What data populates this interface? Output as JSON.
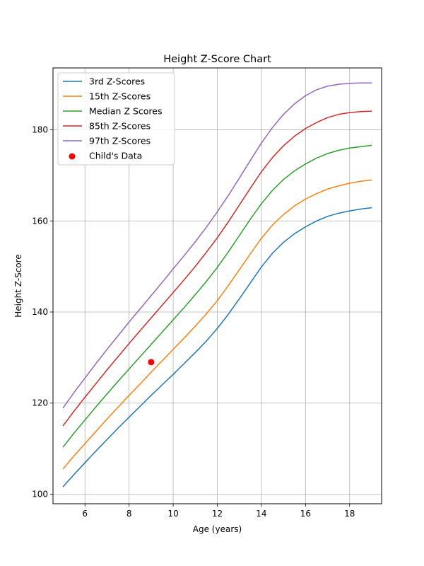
{
  "chart_data": {
    "type": "line",
    "title": "Height Z-Score Chart",
    "xlabel": "Age (years)",
    "ylabel": "Height Z-Score",
    "xlim": [
      4.55,
      19.45
    ],
    "ylim": [
      97.9,
      193.6
    ],
    "xticks": [
      6,
      8,
      10,
      12,
      14,
      16,
      18
    ],
    "yticks": [
      100,
      120,
      140,
      160,
      180
    ],
    "grid": true,
    "legend_position": "top-left",
    "x": [
      5,
      5.5,
      6,
      6.5,
      7,
      7.5,
      8,
      8.5,
      9,
      9.5,
      10,
      10.5,
      11,
      11.5,
      12,
      12.5,
      13,
      13.5,
      14,
      14.5,
      15,
      15.5,
      16,
      16.5,
      17,
      17.5,
      18,
      18.5,
      19
    ],
    "series": [
      {
        "name": "3rd Z-Scores",
        "color": "#1f77b4",
        "values": [
          101.6,
          104.3,
          106.9,
          109.5,
          112.0,
          114.5,
          116.9,
          119.3,
          121.7,
          124.0,
          126.3,
          128.7,
          131.1,
          133.6,
          136.4,
          139.5,
          142.9,
          146.4,
          149.9,
          152.9,
          155.3,
          157.2,
          158.7,
          160.0,
          161.0,
          161.7,
          162.2,
          162.6,
          162.9
        ]
      },
      {
        "name": "15th Z-Scores",
        "color": "#ff7f0e",
        "values": [
          105.5,
          108.4,
          111.1,
          113.8,
          116.5,
          119.1,
          121.7,
          124.2,
          126.8,
          129.3,
          131.8,
          134.3,
          136.9,
          139.6,
          142.5,
          145.8,
          149.3,
          152.8,
          156.2,
          159.1,
          161.4,
          163.3,
          164.8,
          166.0,
          167.0,
          167.7,
          168.3,
          168.7,
          169.0
        ]
      },
      {
        "name": "Median Z Scores",
        "color": "#2ca02c",
        "values": [
          110.3,
          113.4,
          116.3,
          119.2,
          122.0,
          124.8,
          127.5,
          130.2,
          132.9,
          135.6,
          138.3,
          141.0,
          143.8,
          146.7,
          149.8,
          153.2,
          156.8,
          160.4,
          163.8,
          166.7,
          169.1,
          171.0,
          172.5,
          173.8,
          174.8,
          175.5,
          176.0,
          176.3,
          176.6
        ]
      },
      {
        "name": "85th Z-Scores",
        "color": "#d62728",
        "values": [
          115.0,
          118.2,
          121.3,
          124.3,
          127.3,
          130.2,
          133.1,
          135.9,
          138.7,
          141.5,
          144.3,
          147.1,
          150.0,
          153.1,
          156.3,
          159.8,
          163.5,
          167.2,
          170.8,
          173.9,
          176.5,
          178.6,
          180.3,
          181.6,
          182.7,
          183.4,
          183.8,
          184.0,
          184.1
        ]
      },
      {
        "name": "97th Z-Scores",
        "color": "#9467bd",
        "values": [
          118.9,
          122.3,
          125.5,
          128.7,
          131.8,
          134.8,
          137.8,
          140.7,
          143.6,
          146.5,
          149.5,
          152.4,
          155.4,
          158.6,
          162.0,
          165.6,
          169.4,
          173.3,
          177.1,
          180.5,
          183.4,
          185.7,
          187.5,
          188.8,
          189.6,
          190.0,
          190.2,
          190.3,
          190.3
        ]
      }
    ],
    "points": [
      {
        "name": "Child's Data",
        "color": "#ff0000",
        "x": 9,
        "y": 129
      }
    ]
  }
}
